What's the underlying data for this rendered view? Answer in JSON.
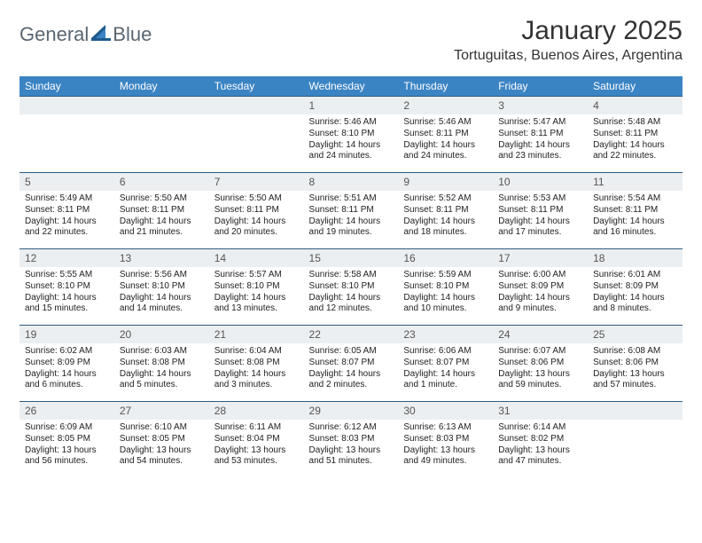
{
  "brand": {
    "part1": "General",
    "part2": "Blue"
  },
  "title": "January 2025",
  "location": "Tortuguitas, Buenos Aires, Argentina",
  "colors": {
    "header_bg": "#3b84c4",
    "header_text": "#ffffff",
    "row_border": "#2f5b83",
    "daynum_bg": "#eceff1",
    "daynum_text": "#555555",
    "body_text": "#222222",
    "logo_gray": "#5b6670",
    "logo_blue": "#2f6fa7"
  },
  "day_headers": [
    "Sunday",
    "Monday",
    "Tuesday",
    "Wednesday",
    "Thursday",
    "Friday",
    "Saturday"
  ],
  "weeks": [
    [
      null,
      null,
      null,
      {
        "n": "1",
        "sunrise": "5:46 AM",
        "sunset": "8:10 PM",
        "daylight": "14 hours and 24 minutes."
      },
      {
        "n": "2",
        "sunrise": "5:46 AM",
        "sunset": "8:11 PM",
        "daylight": "14 hours and 24 minutes."
      },
      {
        "n": "3",
        "sunrise": "5:47 AM",
        "sunset": "8:11 PM",
        "daylight": "14 hours and 23 minutes."
      },
      {
        "n": "4",
        "sunrise": "5:48 AM",
        "sunset": "8:11 PM",
        "daylight": "14 hours and 22 minutes."
      }
    ],
    [
      {
        "n": "5",
        "sunrise": "5:49 AM",
        "sunset": "8:11 PM",
        "daylight": "14 hours and 22 minutes."
      },
      {
        "n": "6",
        "sunrise": "5:50 AM",
        "sunset": "8:11 PM",
        "daylight": "14 hours and 21 minutes."
      },
      {
        "n": "7",
        "sunrise": "5:50 AM",
        "sunset": "8:11 PM",
        "daylight": "14 hours and 20 minutes."
      },
      {
        "n": "8",
        "sunrise": "5:51 AM",
        "sunset": "8:11 PM",
        "daylight": "14 hours and 19 minutes."
      },
      {
        "n": "9",
        "sunrise": "5:52 AM",
        "sunset": "8:11 PM",
        "daylight": "14 hours and 18 minutes."
      },
      {
        "n": "10",
        "sunrise": "5:53 AM",
        "sunset": "8:11 PM",
        "daylight": "14 hours and 17 minutes."
      },
      {
        "n": "11",
        "sunrise": "5:54 AM",
        "sunset": "8:11 PM",
        "daylight": "14 hours and 16 minutes."
      }
    ],
    [
      {
        "n": "12",
        "sunrise": "5:55 AM",
        "sunset": "8:10 PM",
        "daylight": "14 hours and 15 minutes."
      },
      {
        "n": "13",
        "sunrise": "5:56 AM",
        "sunset": "8:10 PM",
        "daylight": "14 hours and 14 minutes."
      },
      {
        "n": "14",
        "sunrise": "5:57 AM",
        "sunset": "8:10 PM",
        "daylight": "14 hours and 13 minutes."
      },
      {
        "n": "15",
        "sunrise": "5:58 AM",
        "sunset": "8:10 PM",
        "daylight": "14 hours and 12 minutes."
      },
      {
        "n": "16",
        "sunrise": "5:59 AM",
        "sunset": "8:10 PM",
        "daylight": "14 hours and 10 minutes."
      },
      {
        "n": "17",
        "sunrise": "6:00 AM",
        "sunset": "8:09 PM",
        "daylight": "14 hours and 9 minutes."
      },
      {
        "n": "18",
        "sunrise": "6:01 AM",
        "sunset": "8:09 PM",
        "daylight": "14 hours and 8 minutes."
      }
    ],
    [
      {
        "n": "19",
        "sunrise": "6:02 AM",
        "sunset": "8:09 PM",
        "daylight": "14 hours and 6 minutes."
      },
      {
        "n": "20",
        "sunrise": "6:03 AM",
        "sunset": "8:08 PM",
        "daylight": "14 hours and 5 minutes."
      },
      {
        "n": "21",
        "sunrise": "6:04 AM",
        "sunset": "8:08 PM",
        "daylight": "14 hours and 3 minutes."
      },
      {
        "n": "22",
        "sunrise": "6:05 AM",
        "sunset": "8:07 PM",
        "daylight": "14 hours and 2 minutes."
      },
      {
        "n": "23",
        "sunrise": "6:06 AM",
        "sunset": "8:07 PM",
        "daylight": "14 hours and 1 minute."
      },
      {
        "n": "24",
        "sunrise": "6:07 AM",
        "sunset": "8:06 PM",
        "daylight": "13 hours and 59 minutes."
      },
      {
        "n": "25",
        "sunrise": "6:08 AM",
        "sunset": "8:06 PM",
        "daylight": "13 hours and 57 minutes."
      }
    ],
    [
      {
        "n": "26",
        "sunrise": "6:09 AM",
        "sunset": "8:05 PM",
        "daylight": "13 hours and 56 minutes."
      },
      {
        "n": "27",
        "sunrise": "6:10 AM",
        "sunset": "8:05 PM",
        "daylight": "13 hours and 54 minutes."
      },
      {
        "n": "28",
        "sunrise": "6:11 AM",
        "sunset": "8:04 PM",
        "daylight": "13 hours and 53 minutes."
      },
      {
        "n": "29",
        "sunrise": "6:12 AM",
        "sunset": "8:03 PM",
        "daylight": "13 hours and 51 minutes."
      },
      {
        "n": "30",
        "sunrise": "6:13 AM",
        "sunset": "8:03 PM",
        "daylight": "13 hours and 49 minutes."
      },
      {
        "n": "31",
        "sunrise": "6:14 AM",
        "sunset": "8:02 PM",
        "daylight": "13 hours and 47 minutes."
      },
      null
    ]
  ],
  "labels": {
    "sunrise": "Sunrise:",
    "sunset": "Sunset:",
    "daylight": "Daylight:"
  }
}
